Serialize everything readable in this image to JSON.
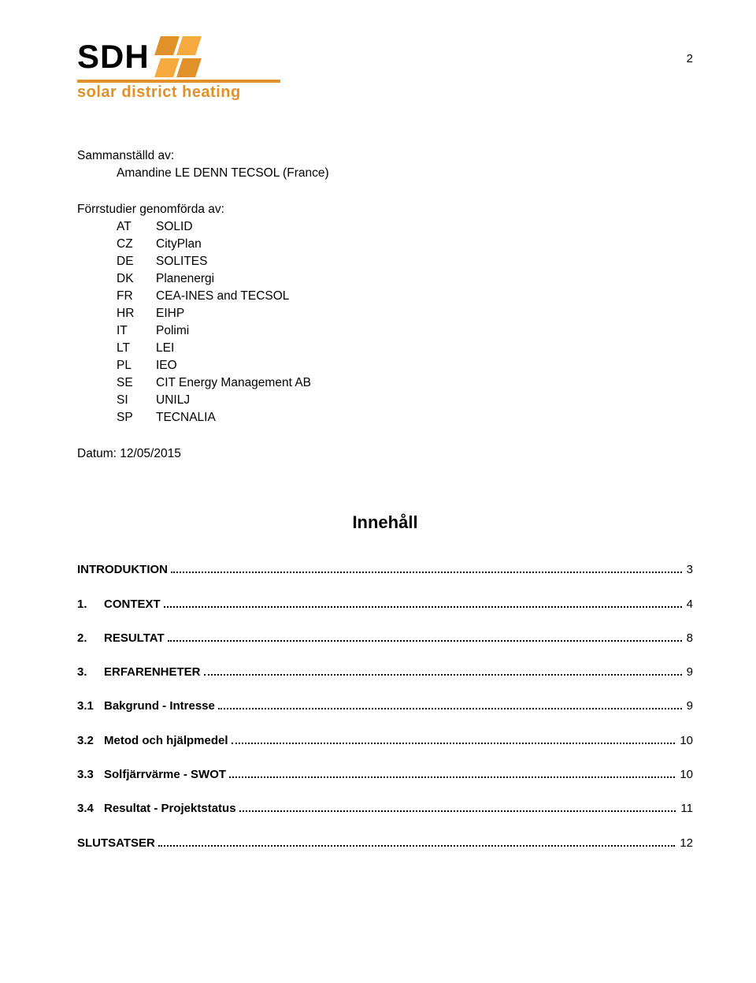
{
  "logo": {
    "acronym": "SDH",
    "subtitle": "solar district heating",
    "square_colors": [
      "#e1912a",
      "#f5a93e",
      "#f5a93e",
      "#e1912a"
    ],
    "rule_color": "#e1912a"
  },
  "page_number": "2",
  "compiled_by": {
    "label": "Sammanställd av:",
    "author": "Amandine LE DENN TECSOL (France)"
  },
  "prestudies": {
    "label": "Förrstudier genomförda av:",
    "pairs": [
      {
        "code": "AT",
        "name": "SOLID"
      },
      {
        "code": "CZ",
        "name": "CityPlan"
      },
      {
        "code": "DE",
        "name": "SOLITES"
      },
      {
        "code": "DK",
        "name": "Planenergi"
      },
      {
        "code": "FR",
        "name": "CEA-INES and TECSOL"
      },
      {
        "code": "HR",
        "name": "EIHP"
      },
      {
        "code": "IT",
        "name": "Polimi"
      },
      {
        "code": "LT",
        "name": "LEI"
      },
      {
        "code": "PL",
        "name": "IEO"
      },
      {
        "code": "SE",
        "name": "CIT Energy Management AB"
      },
      {
        "code": "SI",
        "name": "UNILJ"
      },
      {
        "code": "SP",
        "name": "TECNALIA"
      }
    ]
  },
  "date": {
    "label": "Datum: 12/05/2015"
  },
  "toc": {
    "title": "Innehåll",
    "items": [
      {
        "num": "",
        "label": "INTRODUKTION",
        "page": "3",
        "level": 1
      },
      {
        "num": "1.",
        "label": "CONTEXT",
        "page": "4",
        "level": 1
      },
      {
        "num": "2.",
        "label": "RESULTAT",
        "page": "8",
        "level": 1
      },
      {
        "num": "3.",
        "label": "ERFARENHETER",
        "page": "9",
        "level": 1
      },
      {
        "num": "3.1",
        "label": "Bakgrund - Intresse",
        "page": "9",
        "level": 2
      },
      {
        "num": "3.2",
        "label": "Metod och hjälpmedel",
        "page": "10",
        "level": 2
      },
      {
        "num": "3.3",
        "label": "Solfjärrvärme - SWOT",
        "page": "10",
        "level": 2
      },
      {
        "num": "3.4",
        "label": "Resultat - Projektstatus",
        "page": "11",
        "level": 2
      },
      {
        "num": "",
        "label": "SLUTSATSER",
        "page": "12",
        "level": 1
      }
    ]
  }
}
